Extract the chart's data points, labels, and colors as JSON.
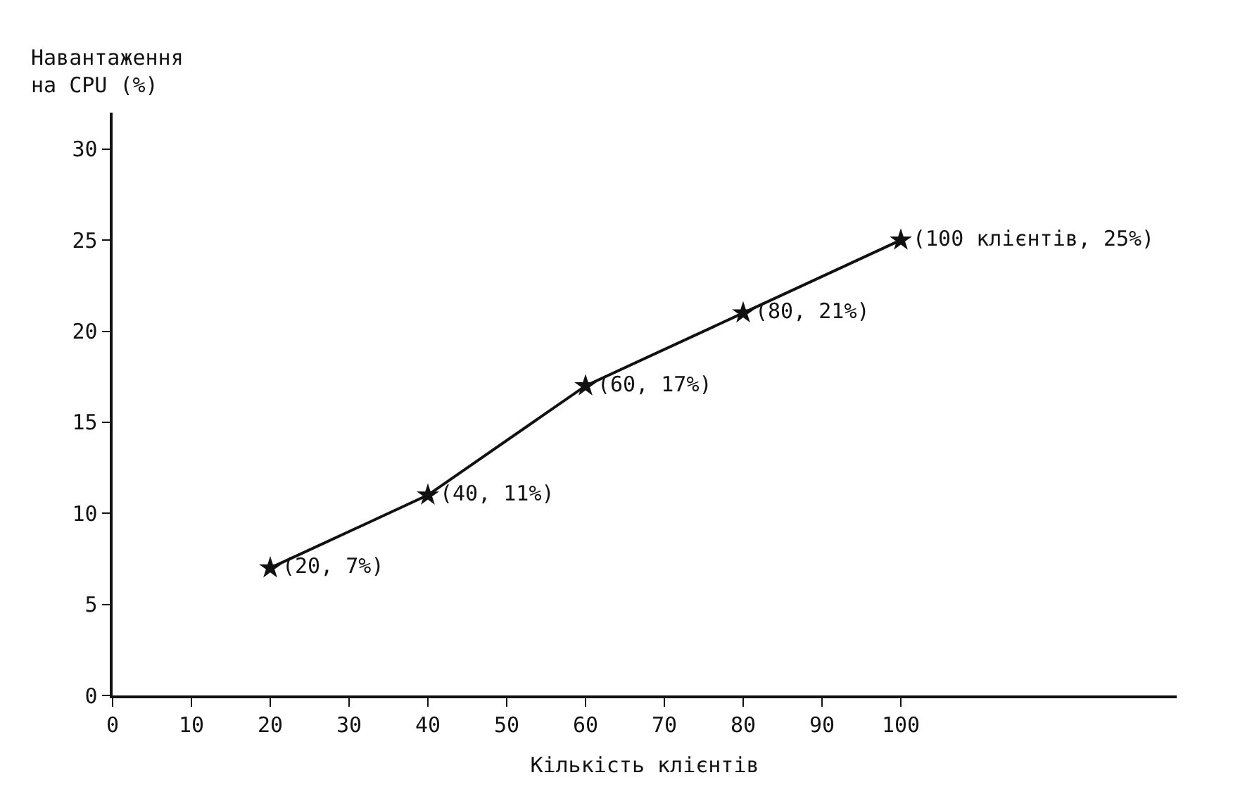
{
  "chart_data": {
    "type": "line",
    "xlabel": "Кількість клієнтів",
    "ylabel": "Навантаження\nна CPU (%)",
    "x": [
      20,
      40,
      60,
      80,
      100
    ],
    "series": [
      {
        "color": "#111111",
        "values": [
          7,
          11,
          17,
          21,
          25
        ],
        "value_labels": [
          "(20, 7%)",
          "(40, 11%)",
          "(60, 17%)",
          "(80, 21%)",
          "(100 клієнтів, 25%)"
        ]
      }
    ],
    "xlim": [
      0,
      135
    ],
    "ylim": [
      0,
      32
    ],
    "xticks": [
      0,
      10,
      20,
      30,
      40,
      50,
      60,
      70,
      80,
      90,
      100
    ],
    "yticks": [
      0,
      5,
      10,
      15,
      20,
      25,
      30
    ],
    "marker": "star",
    "line_style": "solid"
  }
}
